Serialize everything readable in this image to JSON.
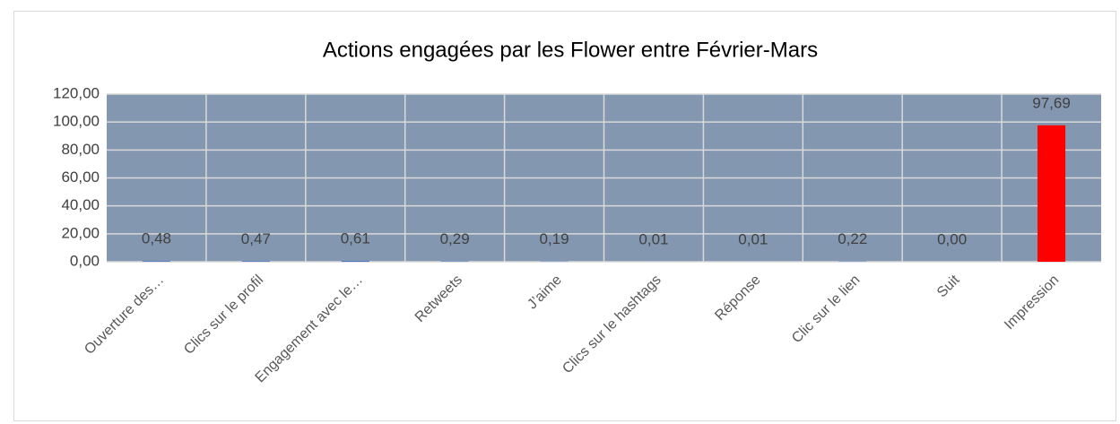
{
  "chart_data": {
    "type": "bar",
    "title": "Actions engagées par les Flower entre Février-Mars",
    "categories": [
      "Ouverture des…",
      "Clics sur le profil",
      "Engagement avec le…",
      "Retweets",
      "J’aime",
      "Clics sur le hashtags",
      "Réponse",
      "Clic sur le lien",
      "Suit",
      "Impression"
    ],
    "values": [
      0.48,
      0.47,
      0.61,
      0.29,
      0.19,
      0.01,
      0.01,
      0.22,
      0.0,
      97.69
    ],
    "value_labels": [
      "0,48",
      "0,47",
      "0,61",
      "0,29",
      "0,19",
      "0,01",
      "0,01",
      "0,22",
      "0,00",
      "97,69"
    ],
    "colors": [
      "#4472c4",
      "#4472c4",
      "#4472c4",
      "#4472c4",
      "#4472c4",
      "#4472c4",
      "#4472c4",
      "#4472c4",
      "#4472c4",
      "#ff0000"
    ],
    "plot_background": "#8497b0",
    "ylim": [
      0,
      120
    ],
    "yticks": [
      {
        "value": 0,
        "label": "0,00"
      },
      {
        "value": 20,
        "label": "20,00"
      },
      {
        "value": 40,
        "label": "40,00"
      },
      {
        "value": 60,
        "label": "60,00"
      },
      {
        "value": 80,
        "label": "80,00"
      },
      {
        "value": 100,
        "label": "100,00"
      },
      {
        "value": 120,
        "label": "120,00"
      }
    ],
    "grid": true
  }
}
